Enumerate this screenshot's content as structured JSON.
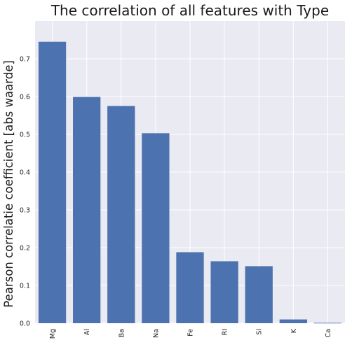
{
  "chart_data": {
    "type": "bar",
    "title": "The correlation of all features with Type",
    "xlabel": "",
    "ylabel": "Pearson correlatie coefficient [abs waarde]",
    "categories": [
      "Mg",
      "Al",
      "Ba",
      "Na",
      "Fe",
      "RI",
      "Si",
      "K",
      "Ca"
    ],
    "values": [
      0.745,
      0.599,
      0.575,
      0.503,
      0.188,
      0.164,
      0.151,
      0.01,
      0.001
    ],
    "ylim": [
      0,
      0.8
    ],
    "yticks": [
      "0.0",
      "0.1",
      "0.2",
      "0.3",
      "0.4",
      "0.5",
      "0.6",
      "0.7"
    ],
    "grid": true,
    "colors": {
      "bar": "#4c72b0",
      "plot_background": "#eaeaf2",
      "grid": "#ffffff"
    }
  }
}
